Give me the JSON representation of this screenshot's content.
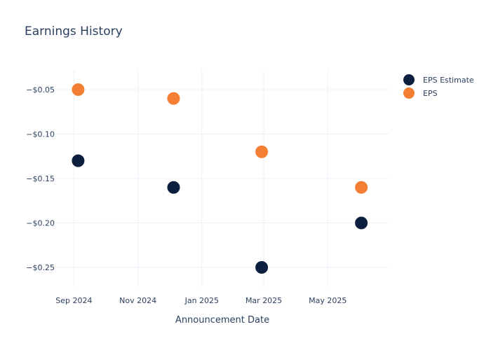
{
  "chart_data": {
    "type": "scatter",
    "title": "Earnings History",
    "xlabel": "Announcement Date",
    "ylabel": "",
    "x_ticks": [
      "2024-09-01",
      "2024-11-01",
      "2025-01-01",
      "2025-03-01",
      "2025-05-01"
    ],
    "x_tick_labels": [
      "Sep 2024",
      "Nov 2024",
      "Jan 2025",
      "Mar 2025",
      "May 2025"
    ],
    "y_ticks": [
      -0.05,
      -0.1,
      -0.15,
      -0.2,
      -0.25
    ],
    "y_tick_labels": [
      "−$0.05",
      "−$0.10",
      "−$0.15",
      "−$0.20",
      "−$0.25"
    ],
    "xlim": [
      "2024-08-15",
      "2025-06-28"
    ],
    "ylim": [
      -0.272,
      -0.028
    ],
    "grid": true,
    "legend_position": "top-right",
    "series": [
      {
        "name": "EPS Estimate",
        "color": "#0d1f3f",
        "points": [
          {
            "x": "2024-09-05",
            "y": -0.13
          },
          {
            "x": "2024-12-05",
            "y": -0.16
          },
          {
            "x": "2025-02-27",
            "y": -0.25
          },
          {
            "x": "2025-06-02",
            "y": -0.2
          }
        ]
      },
      {
        "name": "EPS",
        "color": "#f47e34",
        "points": [
          {
            "x": "2024-09-05",
            "y": -0.05
          },
          {
            "x": "2024-12-05",
            "y": -0.06
          },
          {
            "x": "2025-02-27",
            "y": -0.12
          },
          {
            "x": "2025-06-02",
            "y": -0.16
          }
        ]
      }
    ]
  }
}
